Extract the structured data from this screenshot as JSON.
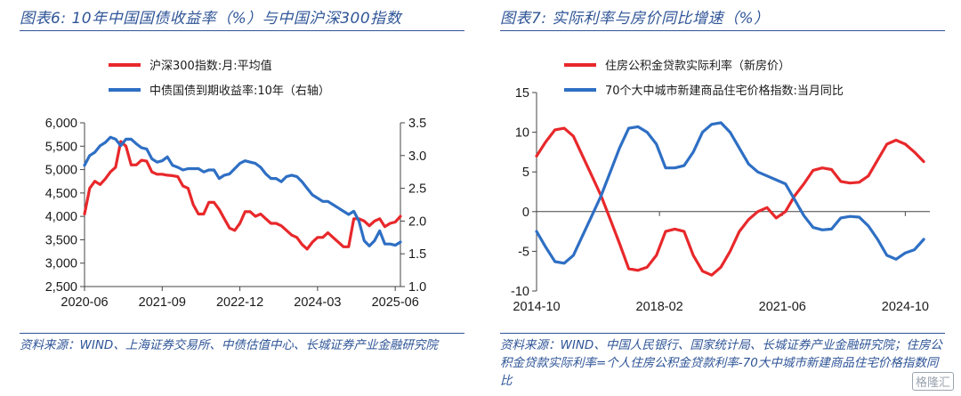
{
  "figures": {
    "left": {
      "title": "图表6: 10年中国国债收益率（%）与中国沪深300指数",
      "source": "资料来源：WIND、上海证券交易所、中债估值中心、长城证券产业金融研究院"
    },
    "right": {
      "title": "图表7: 实际利率与房价同比增速（%）",
      "source": "资料来源：WIND、中国人民银行、国家统计局、长城证券产业金融研究院；住房公积金贷款实际利率=个人住房公积金贷款利率-70大中城市新建商品住宅价格指数同比"
    }
  },
  "watermark": "格隆汇",
  "chart_data": [
    {
      "type": "line",
      "title": "",
      "x_ticks": [
        "2020-06",
        "2021-09",
        "2022-12",
        "2024-03",
        "2025-06"
      ],
      "x_range": [
        "2020-06",
        "2025-07"
      ],
      "ylim": [
        2500,
        6000
      ],
      "y_ticks": [
        2500,
        3000,
        3500,
        4000,
        4500,
        5000,
        5500,
        6000
      ],
      "y2lim": [
        1.0,
        3.5
      ],
      "y2_ticks": [
        1.0,
        1.5,
        2.0,
        2.5,
        3.0,
        3.5
      ],
      "y_tick_labels": [
        "2,500",
        "3,000",
        "3,500",
        "4,000",
        "4,500",
        "5,000",
        "5,500",
        "6,000"
      ],
      "grid": false,
      "legend_position": "top-left",
      "series": [
        {
          "name": "沪深300指数:月:平均值",
          "axis": "left",
          "color": "#e8282b",
          "points": [
            [
              "2020-06",
              4050
            ],
            [
              "2020-07",
              4600
            ],
            [
              "2020-08",
              4750
            ],
            [
              "2020-09",
              4680
            ],
            [
              "2020-10",
              4800
            ],
            [
              "2020-11",
              4950
            ],
            [
              "2020-12",
              5050
            ],
            [
              "2021-01",
              5600
            ],
            [
              "2021-02",
              5500
            ],
            [
              "2021-03",
              5100
            ],
            [
              "2021-04",
              5100
            ],
            [
              "2021-05",
              5200
            ],
            [
              "2021-06",
              5180
            ],
            [
              "2021-07",
              4950
            ],
            [
              "2021-08",
              4900
            ],
            [
              "2021-09",
              4900
            ],
            [
              "2021-10",
              4880
            ],
            [
              "2021-11",
              4870
            ],
            [
              "2021-12",
              4850
            ],
            [
              "2022-01",
              4650
            ],
            [
              "2022-02",
              4600
            ],
            [
              "2022-03",
              4250
            ],
            [
              "2022-04",
              4050
            ],
            [
              "2022-05",
              4050
            ],
            [
              "2022-06",
              4300
            ],
            [
              "2022-07",
              4300
            ],
            [
              "2022-08",
              4150
            ],
            [
              "2022-09",
              3950
            ],
            [
              "2022-10",
              3750
            ],
            [
              "2022-11",
              3700
            ],
            [
              "2022-12",
              3850
            ],
            [
              "2023-01",
              4100
            ],
            [
              "2023-02",
              4100
            ],
            [
              "2023-03",
              4000
            ],
            [
              "2023-04",
              4050
            ],
            [
              "2023-05",
              3950
            ],
            [
              "2023-06",
              3850
            ],
            [
              "2023-07",
              3850
            ],
            [
              "2023-08",
              3800
            ],
            [
              "2023-09",
              3700
            ],
            [
              "2023-10",
              3600
            ],
            [
              "2023-11",
              3550
            ],
            [
              "2023-12",
              3400
            ],
            [
              "2024-01",
              3300
            ],
            [
              "2024-02",
              3450
            ],
            [
              "2024-03",
              3550
            ],
            [
              "2024-04",
              3550
            ],
            [
              "2024-05",
              3650
            ],
            [
              "2024-06",
              3550
            ],
            [
              "2024-07",
              3450
            ],
            [
              "2024-08",
              3350
            ],
            [
              "2024-09",
              3350
            ],
            [
              "2024-10",
              3950
            ],
            [
              "2024-11",
              3950
            ],
            [
              "2024-12",
              3900
            ],
            [
              "2025-01",
              3800
            ],
            [
              "2025-02",
              3900
            ],
            [
              "2025-03",
              3950
            ],
            [
              "2025-04",
              3780
            ],
            [
              "2025-05",
              3850
            ],
            [
              "2025-06",
              3880
            ],
            [
              "2025-07",
              4000
            ]
          ]
        },
        {
          "name": "中债国债到期收益率:10年（右轴）",
          "axis": "right",
          "color": "#2e6fc4",
          "points": [
            [
              "2020-06",
              2.85
            ],
            [
              "2020-07",
              3.0
            ],
            [
              "2020-08",
              3.05
            ],
            [
              "2020-09",
              3.15
            ],
            [
              "2020-10",
              3.2
            ],
            [
              "2020-11",
              3.28
            ],
            [
              "2020-12",
              3.25
            ],
            [
              "2021-01",
              3.15
            ],
            [
              "2021-02",
              3.25
            ],
            [
              "2021-03",
              3.25
            ],
            [
              "2021-04",
              3.18
            ],
            [
              "2021-05",
              3.12
            ],
            [
              "2021-06",
              3.1
            ],
            [
              "2021-07",
              2.95
            ],
            [
              "2021-08",
              2.9
            ],
            [
              "2021-09",
              2.92
            ],
            [
              "2021-10",
              2.98
            ],
            [
              "2021-11",
              2.85
            ],
            [
              "2021-12",
              2.82
            ],
            [
              "2022-01",
              2.78
            ],
            [
              "2022-02",
              2.8
            ],
            [
              "2022-03",
              2.8
            ],
            [
              "2022-04",
              2.8
            ],
            [
              "2022-05",
              2.75
            ],
            [
              "2022-06",
              2.78
            ],
            [
              "2022-07",
              2.78
            ],
            [
              "2022-08",
              2.65
            ],
            [
              "2022-09",
              2.7
            ],
            [
              "2022-10",
              2.72
            ],
            [
              "2022-11",
              2.8
            ],
            [
              "2022-12",
              2.88
            ],
            [
              "2023-01",
              2.92
            ],
            [
              "2023-02",
              2.9
            ],
            [
              "2023-03",
              2.88
            ],
            [
              "2023-04",
              2.82
            ],
            [
              "2023-05",
              2.72
            ],
            [
              "2023-06",
              2.65
            ],
            [
              "2023-07",
              2.65
            ],
            [
              "2023-08",
              2.6
            ],
            [
              "2023-09",
              2.68
            ],
            [
              "2023-10",
              2.7
            ],
            [
              "2023-11",
              2.68
            ],
            [
              "2023-12",
              2.6
            ],
            [
              "2024-01",
              2.5
            ],
            [
              "2024-02",
              2.4
            ],
            [
              "2024-03",
              2.35
            ],
            [
              "2024-04",
              2.3
            ],
            [
              "2024-05",
              2.3
            ],
            [
              "2024-06",
              2.25
            ],
            [
              "2024-07",
              2.2
            ],
            [
              "2024-08",
              2.15
            ],
            [
              "2024-09",
              2.1
            ],
            [
              "2024-10",
              2.15
            ],
            [
              "2024-11",
              2.0
            ],
            [
              "2024-12",
              1.7
            ],
            [
              "2025-01",
              1.62
            ],
            [
              "2025-02",
              1.7
            ],
            [
              "2025-03",
              1.85
            ],
            [
              "2025-04",
              1.65
            ],
            [
              "2025-05",
              1.65
            ],
            [
              "2025-06",
              1.63
            ],
            [
              "2025-07",
              1.68
            ]
          ]
        }
      ]
    },
    {
      "type": "line",
      "title": "",
      "x_ticks": [
        "2014-10",
        "2018-02",
        "2021-06",
        "2024-10"
      ],
      "x_range": [
        "2014-10",
        "2025-06"
      ],
      "ylim": [
        -10,
        15
      ],
      "y_ticks": [
        -10,
        -5,
        0,
        5,
        10,
        15
      ],
      "grid": false,
      "zero_line": true,
      "legend_position": "top",
      "series": [
        {
          "name": "住房公积金贷款实际利率（新房价）",
          "color": "#e8282b",
          "points": [
            [
              "2014-10",
              7.0
            ],
            [
              "2015-01",
              8.8
            ],
            [
              "2015-04",
              10.3
            ],
            [
              "2015-07",
              10.5
            ],
            [
              "2015-10",
              9.5
            ],
            [
              "2016-01",
              7.0
            ],
            [
              "2016-04",
              4.5
            ],
            [
              "2016-07",
              2.0
            ],
            [
              "2016-10",
              -1.0
            ],
            [
              "2017-01",
              -4.0
            ],
            [
              "2017-04",
              -7.2
            ],
            [
              "2017-07",
              -7.4
            ],
            [
              "2017-10",
              -7.0
            ],
            [
              "2018-01",
              -5.5
            ],
            [
              "2018-04",
              -2.5
            ],
            [
              "2018-07",
              -2.2
            ],
            [
              "2018-10",
              -2.5
            ],
            [
              "2019-01",
              -5.5
            ],
            [
              "2019-04",
              -7.5
            ],
            [
              "2019-07",
              -8.0
            ],
            [
              "2019-10",
              -7.0
            ],
            [
              "2020-01",
              -5.0
            ],
            [
              "2020-04",
              -2.5
            ],
            [
              "2020-07",
              -1.0
            ],
            [
              "2020-10",
              0.0
            ],
            [
              "2021-01",
              0.5
            ],
            [
              "2021-04",
              -0.8
            ],
            [
              "2021-07",
              0.0
            ],
            [
              "2021-10",
              2.0
            ],
            [
              "2022-01",
              3.5
            ],
            [
              "2022-04",
              5.2
            ],
            [
              "2022-07",
              5.5
            ],
            [
              "2022-10",
              5.3
            ],
            [
              "2023-01",
              3.8
            ],
            [
              "2023-04",
              3.6
            ],
            [
              "2023-07",
              3.7
            ],
            [
              "2023-10",
              4.5
            ],
            [
              "2024-01",
              6.5
            ],
            [
              "2024-04",
              8.5
            ],
            [
              "2024-07",
              9.0
            ],
            [
              "2024-10",
              8.5
            ],
            [
              "2025-01",
              7.5
            ],
            [
              "2025-04",
              6.3
            ]
          ]
        },
        {
          "name": "70个大中城市新建商品住宅价格指数:当月同比",
          "color": "#2e6fc4",
          "points": [
            [
              "2014-10",
              -2.5
            ],
            [
              "2015-01",
              -4.5
            ],
            [
              "2015-04",
              -6.3
            ],
            [
              "2015-07",
              -6.5
            ],
            [
              "2015-10",
              -5.5
            ],
            [
              "2016-01",
              -3.0
            ],
            [
              "2016-04",
              -0.5
            ],
            [
              "2016-07",
              2.0
            ],
            [
              "2016-10",
              5.0
            ],
            [
              "2017-01",
              8.0
            ],
            [
              "2017-04",
              10.5
            ],
            [
              "2017-07",
              10.7
            ],
            [
              "2017-10",
              10.0
            ],
            [
              "2018-01",
              8.5
            ],
            [
              "2018-04",
              5.5
            ],
            [
              "2018-07",
              5.5
            ],
            [
              "2018-10",
              5.8
            ],
            [
              "2019-01",
              7.5
            ],
            [
              "2019-04",
              10.0
            ],
            [
              "2019-07",
              11.0
            ],
            [
              "2019-10",
              11.2
            ],
            [
              "2020-01",
              10.0
            ],
            [
              "2020-04",
              8.0
            ],
            [
              "2020-07",
              6.0
            ],
            [
              "2020-10",
              5.0
            ],
            [
              "2021-01",
              4.5
            ],
            [
              "2021-04",
              4.0
            ],
            [
              "2021-07",
              3.5
            ],
            [
              "2021-10",
              1.5
            ],
            [
              "2022-01",
              -0.5
            ],
            [
              "2022-04",
              -2.0
            ],
            [
              "2022-07",
              -2.3
            ],
            [
              "2022-10",
              -2.2
            ],
            [
              "2023-01",
              -0.8
            ],
            [
              "2023-04",
              -0.6
            ],
            [
              "2023-07",
              -0.7
            ],
            [
              "2023-10",
              -1.8
            ],
            [
              "2024-01",
              -3.5
            ],
            [
              "2024-04",
              -5.5
            ],
            [
              "2024-07",
              -6.0
            ],
            [
              "2024-10",
              -5.2
            ],
            [
              "2025-01",
              -4.8
            ],
            [
              "2025-04",
              -3.5
            ]
          ]
        }
      ]
    }
  ]
}
